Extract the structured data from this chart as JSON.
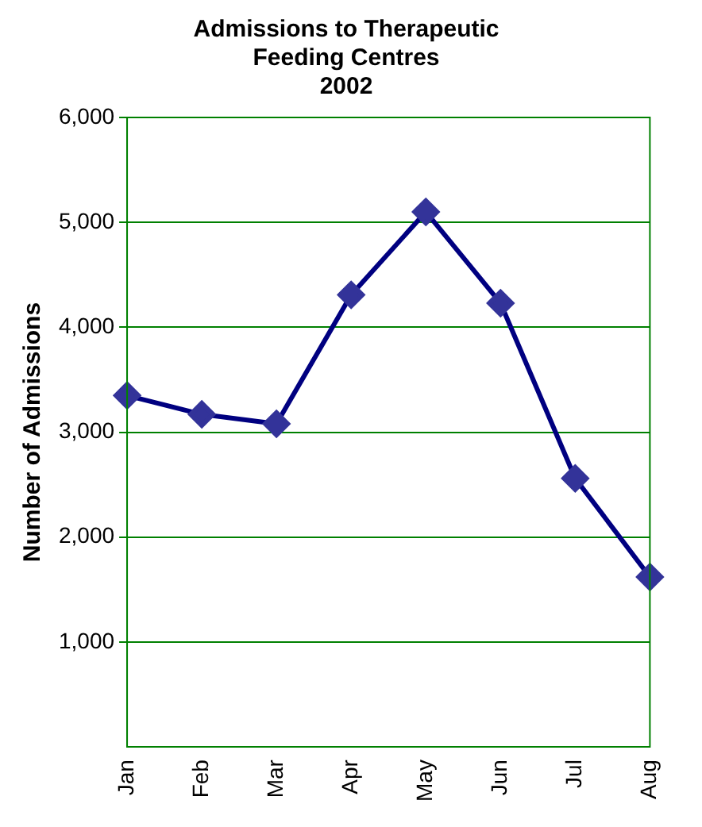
{
  "chart_data": {
    "type": "line",
    "title": "Admissions to Therapeutic\nFeeding Centres\n2002",
    "ylabel": "Number of Admissions",
    "categories": [
      "Jan",
      "Feb",
      "Mar",
      "Apr",
      "May",
      "Jun",
      "Jul",
      "Aug"
    ],
    "series": [
      {
        "color": "#000080",
        "values": [
          3350,
          3170,
          3080,
          4310,
          5100,
          4230,
          2560,
          1620
        ]
      }
    ],
    "ylim": [
      0,
      6000
    ],
    "yticks": [
      {
        "value": 1000,
        "label": "1,000"
      },
      {
        "value": 2000,
        "label": "2,000"
      },
      {
        "value": 3000,
        "label": "3,000"
      },
      {
        "value": 4000,
        "label": "4,000"
      },
      {
        "value": 5000,
        "label": "5,000"
      },
      {
        "value": 6000,
        "label": "6,000"
      }
    ],
    "grid": "y",
    "marker": "diamond",
    "line_style": "solid",
    "legend": false
  }
}
